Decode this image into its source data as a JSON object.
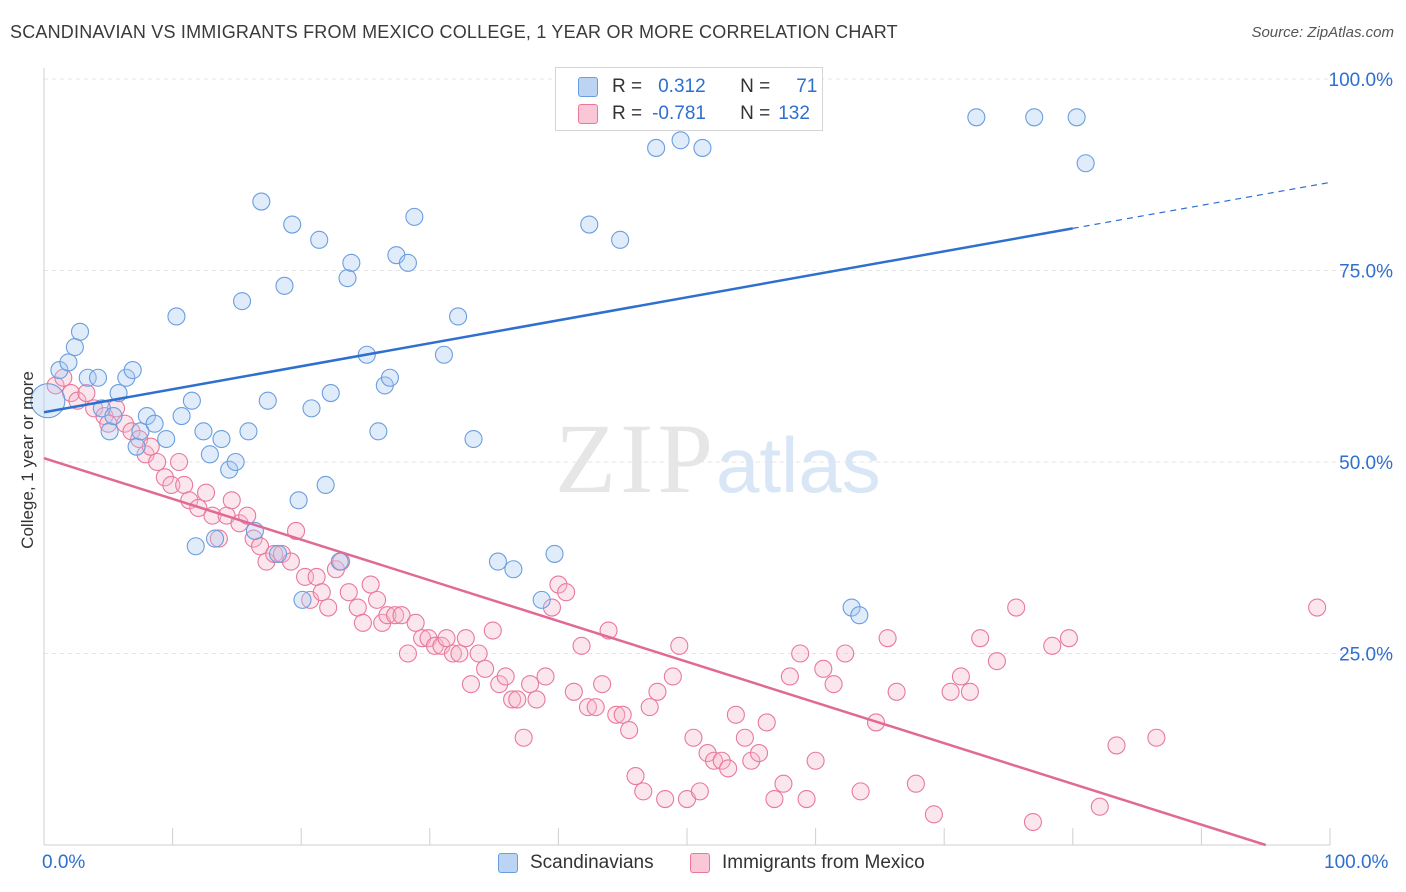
{
  "title": "SCANDINAVIAN VS IMMIGRANTS FROM MEXICO COLLEGE, 1 YEAR OR MORE CORRELATION CHART",
  "source": "Source: ZipAtlas.com",
  "watermark": {
    "zip": "ZIP",
    "atlas": "atlas"
  },
  "legend": {
    "r_label": "R =",
    "n_label": "N =",
    "series": [
      {
        "name": "Scandinavians",
        "r": "0.312",
        "n": "71",
        "color": "#a8c8f0",
        "edge": "#6a9ee0"
      },
      {
        "name": "Immigrants from Mexico",
        "r": "-0.781",
        "n": "132",
        "color": "#f7b8cc",
        "edge": "#e8799d"
      }
    ]
  },
  "chart_data": {
    "type": "scatter",
    "title": "SCANDINAVIAN VS IMMIGRANTS FROM MEXICO COLLEGE, 1 YEAR OR MORE CORRELATION CHART",
    "xlabel": "",
    "ylabel": "College, 1 year or more",
    "xlim": [
      0,
      100
    ],
    "ylim": [
      0,
      100
    ],
    "x_tick_labels": [
      "0.0%",
      "100.0%"
    ],
    "y_tick_labels": [
      "25.0%",
      "50.0%",
      "75.0%",
      "100.0%"
    ],
    "y_ticks": [
      25,
      50,
      75,
      100
    ],
    "grid": true,
    "legend_position": "top-center",
    "series": [
      {
        "name": "Scandinavians",
        "color": "#a8c8f0",
        "line_color": "#2f6fcf",
        "trend": {
          "x0": 0,
          "y0": 56.5,
          "x1": 80,
          "y1": 80.5,
          "dashed_to": 100,
          "y_dashed_end": 86.5
        },
        "points": [
          [
            0.3,
            58
          ],
          [
            1.2,
            62
          ],
          [
            1.9,
            63
          ],
          [
            2.4,
            65
          ],
          [
            2.8,
            67
          ],
          [
            3.4,
            61
          ],
          [
            4.2,
            61
          ],
          [
            4.5,
            57
          ],
          [
            5.1,
            54
          ],
          [
            5.4,
            56
          ],
          [
            5.8,
            59
          ],
          [
            6.4,
            61
          ],
          [
            6.9,
            62
          ],
          [
            7.2,
            52
          ],
          [
            7.5,
            54
          ],
          [
            8.0,
            56
          ],
          [
            8.6,
            55
          ],
          [
            9.5,
            53
          ],
          [
            10.3,
            69
          ],
          [
            10.7,
            56
          ],
          [
            11.5,
            58
          ],
          [
            11.8,
            39
          ],
          [
            12.4,
            54
          ],
          [
            12.9,
            51
          ],
          [
            13.3,
            40
          ],
          [
            13.8,
            53
          ],
          [
            14.4,
            49
          ],
          [
            14.9,
            50
          ],
          [
            15.4,
            71
          ],
          [
            15.9,
            54
          ],
          [
            16.4,
            41
          ],
          [
            16.9,
            84
          ],
          [
            17.4,
            58
          ],
          [
            18.2,
            38
          ],
          [
            18.7,
            73
          ],
          [
            19.3,
            81
          ],
          [
            19.8,
            45
          ],
          [
            20.1,
            32
          ],
          [
            20.8,
            57
          ],
          [
            21.4,
            79
          ],
          [
            21.9,
            47
          ],
          [
            22.3,
            59
          ],
          [
            23.0,
            37
          ],
          [
            23.6,
            74
          ],
          [
            23.9,
            76
          ],
          [
            25.1,
            64
          ],
          [
            26.0,
            54
          ],
          [
            26.5,
            60
          ],
          [
            26.9,
            61
          ],
          [
            27.4,
            77
          ],
          [
            28.3,
            76
          ],
          [
            28.8,
            82
          ],
          [
            31.1,
            64
          ],
          [
            32.2,
            69
          ],
          [
            33.4,
            53
          ],
          [
            35.3,
            37
          ],
          [
            36.5,
            36
          ],
          [
            38.7,
            32
          ],
          [
            39.7,
            38
          ],
          [
            42.4,
            81
          ],
          [
            44.8,
            79
          ],
          [
            47.0,
            95
          ],
          [
            47.6,
            91
          ],
          [
            49.5,
            92
          ],
          [
            51.2,
            91
          ],
          [
            62.8,
            31
          ],
          [
            63.4,
            30
          ],
          [
            77.0,
            95
          ],
          [
            80.3,
            95
          ],
          [
            81.0,
            89
          ],
          [
            72.5,
            95
          ]
        ]
      },
      {
        "name": "Immigrants from Mexico",
        "color": "#f7b8cc",
        "line_color": "#e06a95",
        "trend": {
          "x0": 0,
          "y0": 50.5,
          "x1": 95,
          "y1": 0
        },
        "points": [
          [
            0.9,
            60
          ],
          [
            1.5,
            61
          ],
          [
            2.1,
            59
          ],
          [
            2.6,
            58
          ],
          [
            3.3,
            59
          ],
          [
            3.9,
            57
          ],
          [
            4.7,
            56
          ],
          [
            5.0,
            55
          ],
          [
            5.6,
            57
          ],
          [
            6.3,
            55
          ],
          [
            6.8,
            54
          ],
          [
            7.4,
            53
          ],
          [
            7.9,
            51
          ],
          [
            8.3,
            52
          ],
          [
            8.8,
            50
          ],
          [
            9.4,
            48
          ],
          [
            9.9,
            47
          ],
          [
            10.5,
            50
          ],
          [
            10.9,
            47
          ],
          [
            11.3,
            45
          ],
          [
            12.0,
            44
          ],
          [
            12.6,
            46
          ],
          [
            13.1,
            43
          ],
          [
            13.6,
            40
          ],
          [
            14.2,
            43
          ],
          [
            14.6,
            45
          ],
          [
            15.2,
            42
          ],
          [
            15.8,
            43
          ],
          [
            16.3,
            40
          ],
          [
            16.8,
            39
          ],
          [
            17.3,
            37
          ],
          [
            17.9,
            38
          ],
          [
            18.5,
            38
          ],
          [
            19.2,
            37
          ],
          [
            19.6,
            41
          ],
          [
            20.3,
            35
          ],
          [
            20.7,
            32
          ],
          [
            21.2,
            35
          ],
          [
            21.6,
            33
          ],
          [
            22.1,
            31
          ],
          [
            22.7,
            36
          ],
          [
            23.1,
            37
          ],
          [
            23.7,
            33
          ],
          [
            24.4,
            31
          ],
          [
            24.8,
            29
          ],
          [
            25.4,
            34
          ],
          [
            25.9,
            32
          ],
          [
            26.3,
            29
          ],
          [
            26.7,
            30
          ],
          [
            27.3,
            30
          ],
          [
            27.8,
            30
          ],
          [
            28.3,
            25
          ],
          [
            28.9,
            29
          ],
          [
            29.4,
            27
          ],
          [
            29.9,
            27
          ],
          [
            30.4,
            26
          ],
          [
            30.9,
            26
          ],
          [
            31.3,
            27
          ],
          [
            31.8,
            25
          ],
          [
            32.3,
            25
          ],
          [
            32.8,
            27
          ],
          [
            33.2,
            21
          ],
          [
            33.8,
            25
          ],
          [
            34.3,
            23
          ],
          [
            34.9,
            28
          ],
          [
            35.4,
            21
          ],
          [
            35.9,
            22
          ],
          [
            36.4,
            19
          ],
          [
            36.8,
            19
          ],
          [
            37.3,
            14
          ],
          [
            37.8,
            21
          ],
          [
            38.3,
            19
          ],
          [
            39.0,
            22
          ],
          [
            39.5,
            31
          ],
          [
            40.0,
            34
          ],
          [
            40.6,
            33
          ],
          [
            41.2,
            20
          ],
          [
            41.8,
            26
          ],
          [
            42.3,
            18
          ],
          [
            42.9,
            18
          ],
          [
            43.4,
            21
          ],
          [
            43.9,
            28
          ],
          [
            44.5,
            17
          ],
          [
            45.0,
            17
          ],
          [
            45.5,
            15
          ],
          [
            46.0,
            9
          ],
          [
            46.6,
            7
          ],
          [
            47.1,
            18
          ],
          [
            47.7,
            20
          ],
          [
            48.3,
            6
          ],
          [
            48.9,
            22
          ],
          [
            49.4,
            26
          ],
          [
            50.0,
            6
          ],
          [
            50.5,
            14
          ],
          [
            51.0,
            7
          ],
          [
            51.6,
            12
          ],
          [
            52.1,
            11
          ],
          [
            52.7,
            11
          ],
          [
            53.2,
            10
          ],
          [
            53.8,
            17
          ],
          [
            54.5,
            14
          ],
          [
            55.0,
            11
          ],
          [
            55.6,
            12
          ],
          [
            56.2,
            16
          ],
          [
            56.8,
            6
          ],
          [
            57.5,
            8
          ],
          [
            58.0,
            22
          ],
          [
            58.8,
            25
          ],
          [
            59.3,
            6
          ],
          [
            60.0,
            11
          ],
          [
            60.6,
            23
          ],
          [
            61.4,
            21
          ],
          [
            62.3,
            25
          ],
          [
            63.5,
            7
          ],
          [
            64.7,
            16
          ],
          [
            65.6,
            27
          ],
          [
            66.3,
            20
          ],
          [
            67.8,
            8
          ],
          [
            69.2,
            4
          ],
          [
            70.5,
            20
          ],
          [
            71.3,
            22
          ],
          [
            72.0,
            20
          ],
          [
            72.8,
            27
          ],
          [
            74.1,
            24
          ],
          [
            75.6,
            31
          ],
          [
            76.9,
            3
          ],
          [
            78.4,
            26
          ],
          [
            79.7,
            27
          ],
          [
            82.1,
            5
          ],
          [
            83.4,
            13
          ],
          [
            86.5,
            14
          ],
          [
            99.0,
            31
          ]
        ]
      }
    ]
  }
}
